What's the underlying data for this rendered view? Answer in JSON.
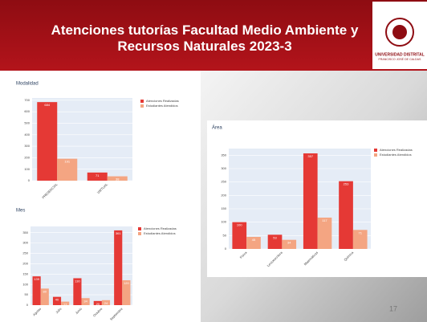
{
  "header": {
    "title": "Atenciones tutorías Facultad Medio Ambiente y Recursos Naturales 2023-3",
    "logo_line1": "UNIVERSIDAD DISTRITAL",
    "logo_line2": "FRANCISCO JOSÉ DE CALDAS"
  },
  "page_number": "17",
  "chart_data": [
    {
      "type": "bar",
      "title": "Modalidad",
      "categories": [
        "PRESENCIAL",
        "VIRTUAL"
      ],
      "series": [
        {
          "name": "Atenciones Realizadas",
          "color": "#e53935",
          "values": [
            684,
            71
          ]
        },
        {
          "name": "Estudiantes Atendidos",
          "color": "#f4a582",
          "values": [
            191,
            38
          ]
        }
      ],
      "ylim": [
        0,
        720
      ],
      "yticks": [
        0,
        100,
        200,
        300,
        400,
        500,
        600,
        700
      ],
      "grid": true
    },
    {
      "type": "bar",
      "title": "Área",
      "categories": [
        "Física",
        "Lectoescritura",
        "Matemáticas",
        "Química"
      ],
      "series": [
        {
          "name": "Atenciones Realizadas",
          "color": "#e53935",
          "values": [
            100,
            53,
            357,
            253
          ]
        },
        {
          "name": "Estudiantes Atendidos",
          "color": "#f4a582",
          "values": [
            45,
            34,
            117,
            71
          ]
        }
      ],
      "ylim": [
        0,
        375
      ],
      "yticks": [
        0,
        50,
        100,
        150,
        200,
        250,
        300,
        350
      ],
      "grid": true
    },
    {
      "type": "bar",
      "title": "Mes",
      "categories": [
        "Agosto",
        "Julio",
        "Junio",
        "Octubre",
        "Septiembre"
      ],
      "series": [
        {
          "name": "Atenciones Realizadas",
          "color": "#e53935",
          "values": [
            139,
            40,
            130,
            20,
            361
          ]
        },
        {
          "name": "Estudiantes Atendidos",
          "color": "#f4a582",
          "values": [
            80,
            17,
            34,
            24,
            120
          ]
        }
      ],
      "ylim": [
        0,
        380
      ],
      "yticks": [
        0,
        50,
        100,
        150,
        200,
        250,
        300,
        350
      ],
      "grid": true
    }
  ]
}
